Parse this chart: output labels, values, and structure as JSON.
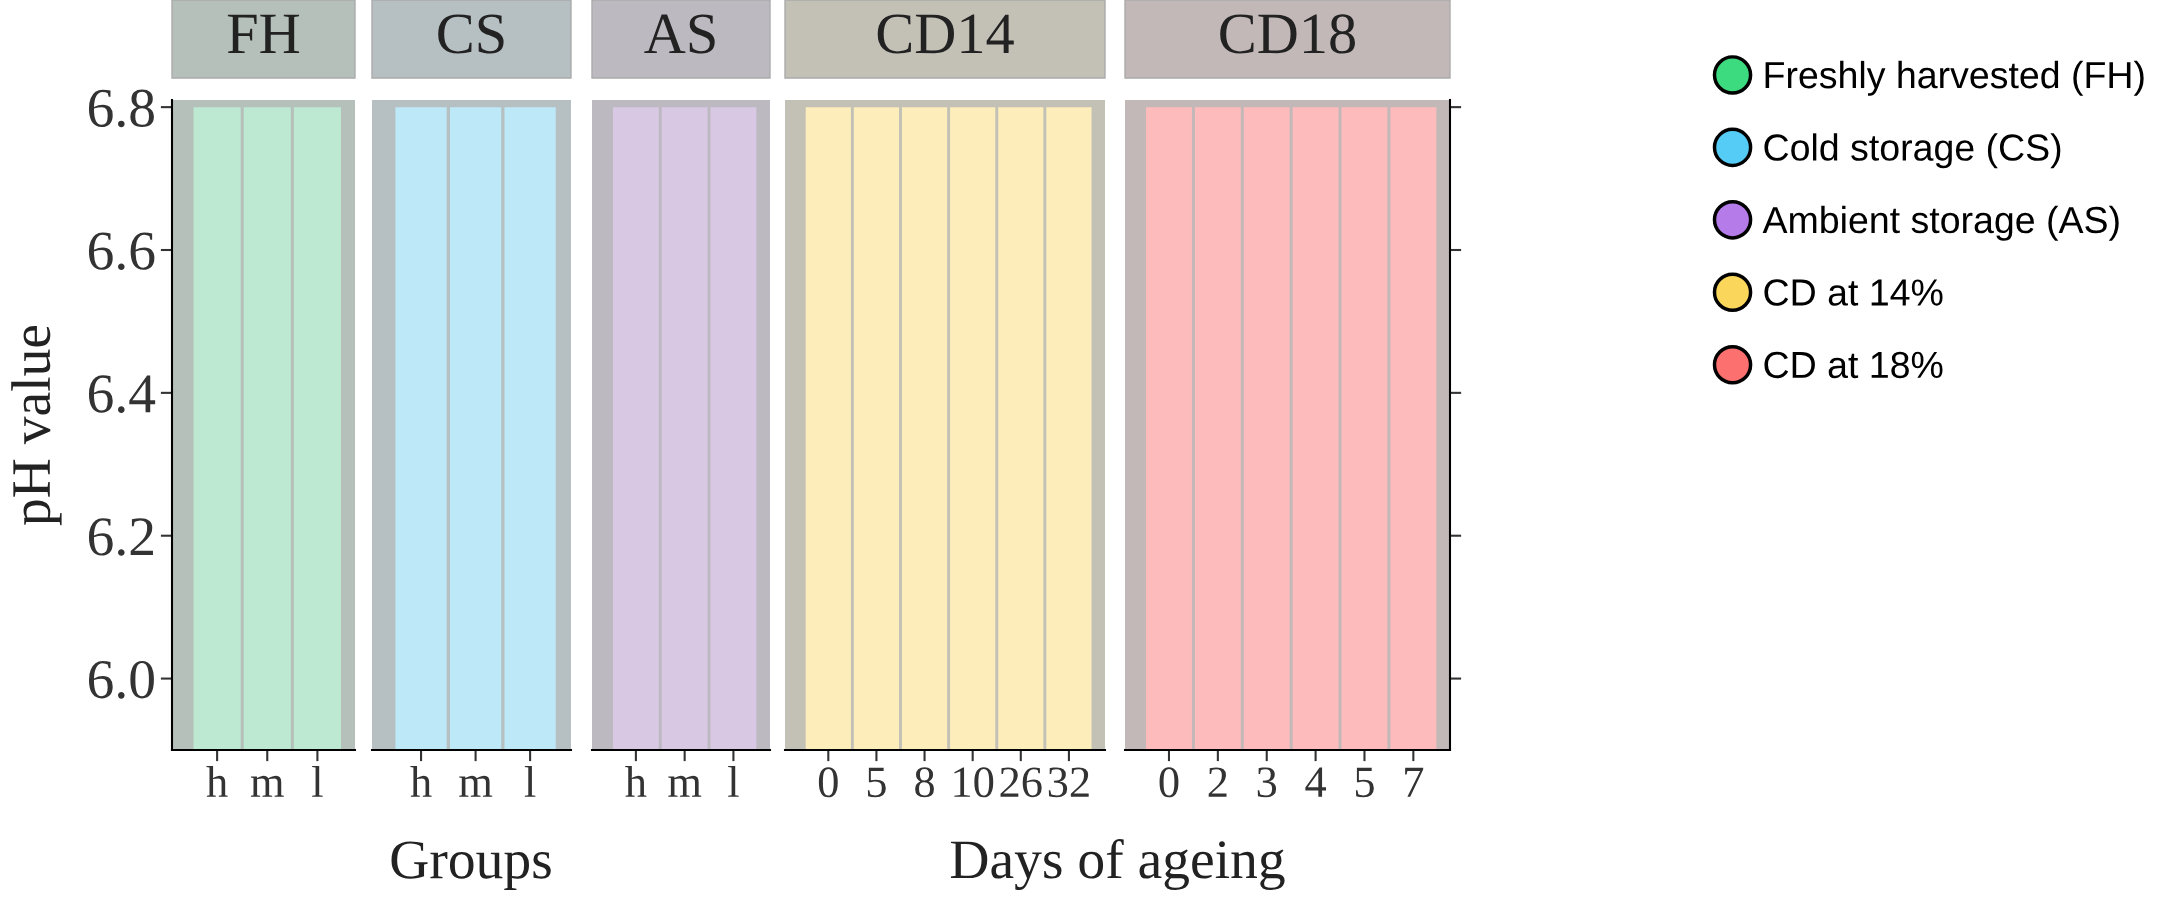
{
  "chart_data": [
    {
      "type": "bar",
      "title": "FH",
      "xlabel": "Groups",
      "ylabel": "pH value",
      "categories": [
        "h",
        "m",
        "l"
      ],
      "series": [
        {
          "name": "Freshly harvested (FH)",
          "color": "#3ddb7f",
          "colors": [
            "#bde9d3",
            "#bde9d3",
            "#bde9d3"
          ],
          "values": [
            6.8,
            6.8,
            6.8
          ]
        }
      ],
      "ylim": [
        5.9,
        6.81
      ],
      "yticks": [
        {
          "value": 6.0,
          "label": "6.0"
        },
        6.2,
        6.4,
        6.6,
        6.8
      ]
    },
    {
      "type": "bar",
      "title": "CS",
      "categories": [
        "h",
        "m",
        "l"
      ],
      "series": [
        {
          "name": "Cold storage (CS)",
          "color": "#55ccf5",
          "colors": [
            "#bce8f7",
            "#bce8f7",
            "#bce8f7"
          ],
          "values": [
            6.8,
            6.8,
            6.8
          ]
        }
      ],
      "ylim": [
        5.9,
        6.81
      ],
      "yticks": [
        6.0,
        6.2,
        6.4,
        6.6,
        6.8
      ],
      "tick_labels": "x"
    },
    {
      "type": "bar",
      "title": "AS",
      "categories": [
        "h",
        "m",
        "l"
      ],
      "series": [
        {
          "name": "Ambient storage (AS)",
          "color": "#b57be8",
          "colors": [
            "#d9c8e4",
            "#d9c8e4",
            "#d9c8e4"
          ],
          "values": [
            6.8,
            6.8,
            6.8
          ]
        }
      ],
      "ylim": [
        5.9,
        6.81
      ],
      "yticks": [
        6.0,
        6.2,
        6.4,
        6.6,
        6.8
      ],
      "tick_labels": "x"
    },
    {
      "type": "bar",
      "title": "CD14",
      "xlabel": "Days of ageing",
      "categories": [
        "0",
        "5",
        "8",
        "10",
        "26",
        "32"
      ],
      "series": [
        {
          "name": "CD at 14%",
          "color": "#fad75a",
          "colors": [
            "#fdedbb",
            "#fdedbb",
            "#fdedbb",
            "#fdedbb",
            "#fdedbb",
            "#fdedbb"
          ],
          "values": [
            6.8,
            6.8,
            6.8,
            6.8,
            6.8,
            6.8
          ]
        }
      ],
      "ylim": [
        5.9,
        6.81
      ],
      "yticks": [
        6.0,
        6.2,
        6.4,
        6.6,
        6.8
      ],
      "tick_labels": "x"
    },
    {
      "type": "bar",
      "title": "CD18",
      "categories": [
        "0",
        "2",
        "3",
        "4",
        "5",
        "7"
      ],
      "series": [
        {
          "name": "CD at 18%",
          "color": "#fd7070",
          "colors": [
            "#fdbbbc",
            "#fdbbbc",
            "#fdbbbc",
            "#fdbbbc",
            "#fdbbbc",
            "#fdbbbc"
          ],
          "values": [
            6.8,
            6.8,
            6.8,
            6.8,
            6.8,
            6.8
          ]
        }
      ],
      "ylim": [
        5.9,
        6.81
      ],
      "yticks": [
        6.0,
        6.2,
        6.4,
        6.6,
        6.8
      ],
      "tick_labels": "x",
      "legend": "right"
    }
  ]
}
